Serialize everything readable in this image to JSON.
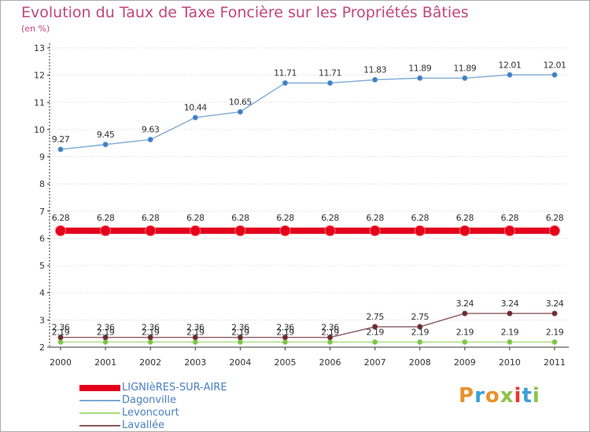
{
  "title": "Evolution du Taux de Taxe Foncière sur les Propriétés Bâties",
  "unit_label": "(en %)",
  "brand": "Proxiti",
  "colors": {
    "title": "#c1467d",
    "grid": "#d9d9d9",
    "axis": "#333333",
    "legend_text": "#4a7fc0"
  },
  "chart_data": {
    "type": "line",
    "title": "Evolution du Taux de Taxe Foncière sur les Propriétés Bâties",
    "ylabel": "(en %)",
    "xlabel": "",
    "ylim": [
      2,
      13
    ],
    "yticks": [
      "2",
      "3",
      "4",
      "5",
      "6",
      "7",
      "8",
      "9",
      "10",
      "11",
      "12",
      "13"
    ],
    "categories": [
      "2000",
      "2001",
      "2002",
      "2003",
      "2004",
      "2005",
      "2006",
      "2007",
      "2008",
      "2009",
      "2010",
      "2011"
    ],
    "grid": true,
    "legend_position": "bottom-left",
    "series": [
      {
        "name": "LIGNIèRES-SUR-AIRE",
        "color": "#e3001b",
        "marker_color": "#e3001b",
        "emphasis": true,
        "values": [
          6.28,
          6.28,
          6.28,
          6.28,
          6.28,
          6.28,
          6.28,
          6.28,
          6.28,
          6.28,
          6.28,
          6.28
        ],
        "labels": [
          "6.28",
          "6.28",
          "6.28",
          "6.28",
          "6.28",
          "6.28",
          "6.28",
          "6.28",
          "6.28",
          "6.28",
          "6.28",
          "6.28"
        ]
      },
      {
        "name": "Dagonville",
        "color": "#7ea9d6",
        "marker_color": "#3d7fc1",
        "emphasis": false,
        "values": [
          9.27,
          9.45,
          9.63,
          10.44,
          10.65,
          11.71,
          11.71,
          11.83,
          11.89,
          11.89,
          12.01,
          12.01
        ],
        "labels": [
          "9.27",
          "9.45",
          "9.63",
          "10.44",
          "10.65",
          "11.71",
          "11.71",
          "11.83",
          "11.89",
          "11.89",
          "12.01",
          "12.01"
        ]
      },
      {
        "name": "Levoncourt",
        "color": "#a8dc7d",
        "marker_color": "#7cc243",
        "emphasis": false,
        "values": [
          2.19,
          2.19,
          2.19,
          2.19,
          2.19,
          2.19,
          2.19,
          2.19,
          2.19,
          2.19,
          2.19,
          2.19
        ],
        "labels": [
          "2.19",
          "2.19",
          "2.19",
          "2.19",
          "2.19",
          "2.19",
          "2.19",
          "2.19",
          "2.19",
          "2.19",
          "2.19",
          "2.19"
        ]
      },
      {
        "name": "Lavallée",
        "color": "#8a5a5f",
        "marker_color": "#6b2a30",
        "emphasis": false,
        "values": [
          2.36,
          2.36,
          2.36,
          2.36,
          2.36,
          2.36,
          2.36,
          2.75,
          2.75,
          3.24,
          3.24,
          3.24
        ],
        "labels": [
          "2.36",
          "2.36",
          "2.36",
          "2.36",
          "2.36",
          "2.36",
          "2.36",
          "2.75",
          "2.75",
          "3.24",
          "3.24",
          "3.24"
        ]
      }
    ]
  }
}
